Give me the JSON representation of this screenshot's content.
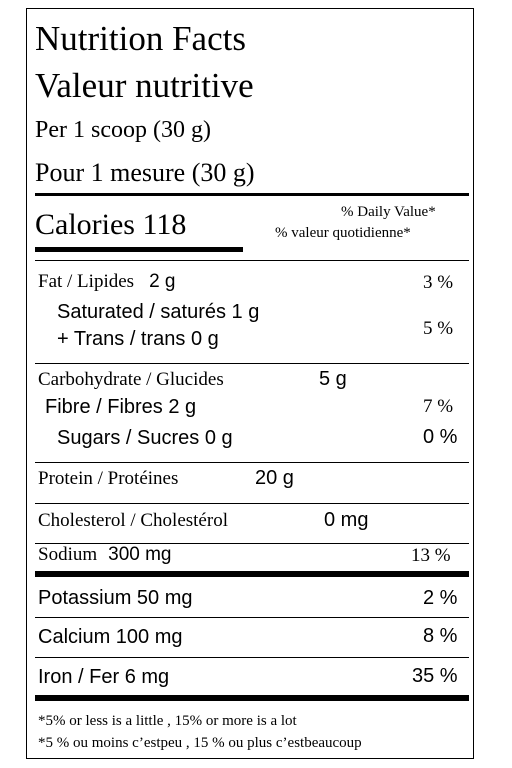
{
  "header": {
    "title_en": "Nutrition Facts",
    "title_fr": "Valeur nutritive",
    "serving_en": "Per 1 scoop (30 g)",
    "serving_fr": "Pour 1 mesure (30 g)"
  },
  "calories": {
    "text": "Calories 118",
    "dv_en": "% Daily Value*",
    "dv_fr": "% valeur quotidienne*"
  },
  "nutrients": {
    "fat": {
      "label": "Fat / Lipides",
      "amount": "2 g",
      "dv": "3 %"
    },
    "saturated": {
      "text": "Saturated / saturés 1 g",
      "dv": "5 %"
    },
    "trans": {
      "text": "+ Trans / trans 0 g"
    },
    "carbohydrate": {
      "label": "Carbohydrate / Glucides",
      "amount": "5 g"
    },
    "fibre": {
      "text": "Fibre / Fibres 2 g",
      "dv": "7 %"
    },
    "sugars": {
      "text": "Sugars / Sucres 0 g",
      "dv": "0 %"
    },
    "protein": {
      "label": "Protein / Protéines",
      "amount": "20 g"
    },
    "cholesterol": {
      "label": "Cholesterol / Cholestérol",
      "amount": "0 mg"
    },
    "sodium": {
      "label": "Sodium",
      "amount": "300 mg",
      "dv": "13 %"
    },
    "potassium": {
      "text": "Potassium 50 mg",
      "dv": "2 %"
    },
    "calcium": {
      "text": "Calcium 100 mg",
      "dv": "8 %"
    },
    "iron": {
      "text": "Iron / Fer 6 mg",
      "dv": "35 %"
    }
  },
  "footnote": {
    "en": "*5% or less is a little , 15% or more is a lot",
    "fr": "*5 % ou moins c’estpeu , 15 % ou plus c’estbeaucoup"
  }
}
